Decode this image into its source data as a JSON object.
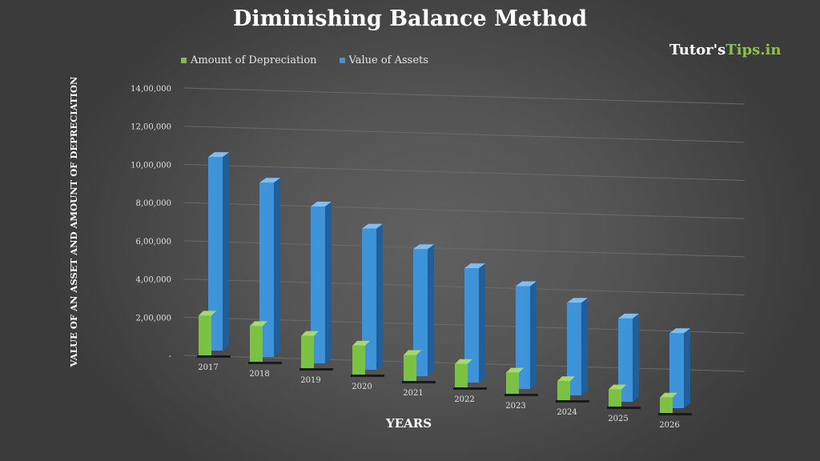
{
  "title": "Diminishing Balance Method",
  "logo": {
    "text_main": "Tutor's",
    "text_accent": "Tips.in"
  },
  "chart_data": {
    "type": "bar",
    "title": "Diminishing Balance Method",
    "xlabel": "YEARS",
    "ylabel": "VALUE OF AN ASSET AND AMOUNT OF DEPRECIATION",
    "categories": [
      "2017",
      "2018",
      "2019",
      "2020",
      "2021",
      "2022",
      "2023",
      "2024",
      "2025",
      "2026"
    ],
    "series": [
      {
        "name": "Amount of Depreciation",
        "color": "#7cc242",
        "values": [
          130000,
          117000,
          105300,
          94770,
          85293,
          76764,
          69087,
          62179,
          55961,
          50365
        ]
      },
      {
        "name": "Value of Assets",
        "color": "#3f93d8",
        "values": [
          1300000,
          1170000,
          1053000,
          947700,
          852930,
          767637,
          690873,
          621786,
          559607,
          503646
        ]
      }
    ],
    "ylim": [
      0,
      1400000
    ],
    "yticks": [
      "-",
      "2,00,000",
      "4,00,000",
      "6,00,000",
      "8,00,000",
      "10,00,000",
      "12,00,000",
      "14,00,000"
    ],
    "legend": "top",
    "grid": true
  }
}
